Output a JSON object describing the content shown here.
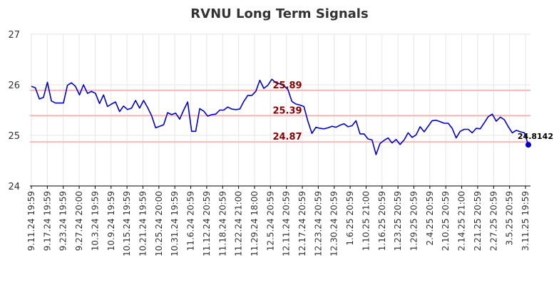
{
  "chart_data": {
    "type": "line",
    "title": "RVNU Long Term Signals",
    "ylim": [
      24,
      27
    ],
    "yticks": [
      24,
      25,
      26,
      27
    ],
    "grid": true,
    "colors": {
      "line": "#0000cc",
      "signal": "#ffb3b3",
      "signal_label": "#8b0000",
      "grid": "#e6e6e6",
      "axis": "#000000",
      "marker": "#0000cc"
    },
    "x_tick_labels": [
      "9.11.24 19:59",
      "9.17.24 19:59",
      "9.23.24 19:59",
      "9.27.24 20:00",
      "10.3.24 19:59",
      "10.9.24 19:59",
      "10.15.24 19:59",
      "10.21.24 19:59",
      "10.25.24 20:00",
      "10.31.24 19:59",
      "11.6.24 20:59",
      "11.12.24 20:59",
      "11.18.24 20:59",
      "11.22.24 21:00",
      "11.29.24 18:00",
      "12.5.24 20:59",
      "12.11.24 20:59",
      "12.17.24 20:59",
      "12.23.24 20:59",
      "12.30.24 20:59",
      "1.6.25 20:59",
      "1.10.25 21:00",
      "1.16.25 20:59",
      "1.23.25 20:59",
      "1.29.25 20:59",
      "2.4.25 20:59",
      "2.10.25 20:59",
      "2.14.25 21:00",
      "2.21.25 20:59",
      "2.27.25 20:59",
      "3.5.25 20:59",
      "3.11.25 19:59"
    ],
    "values": [
      25.97,
      25.94,
      25.72,
      25.75,
      26.05,
      25.68,
      25.64,
      25.64,
      25.64,
      25.99,
      26.04,
      25.97,
      25.8,
      26.0,
      25.83,
      25.87,
      25.83,
      25.63,
      25.8,
      25.57,
      25.62,
      25.66,
      25.47,
      25.58,
      25.51,
      25.54,
      25.69,
      25.54,
      25.69,
      25.55,
      25.39,
      25.15,
      25.18,
      25.21,
      25.45,
      25.41,
      25.44,
      25.32,
      25.5,
      25.66,
      25.08,
      25.08,
      25.53,
      25.48,
      25.38,
      25.41,
      25.42,
      25.5,
      25.5,
      25.56,
      25.52,
      25.51,
      25.52,
      25.67,
      25.79,
      25.79,
      25.87,
      26.09,
      25.93,
      25.99,
      26.11,
      26.04,
      26.02,
      25.98,
      25.91,
      25.67,
      25.62,
      25.6,
      25.57,
      25.28,
      25.04,
      25.16,
      25.14,
      25.13,
      25.15,
      25.18,
      25.16,
      25.2,
      25.23,
      25.17,
      25.19,
      25.29,
      25.03,
      25.03,
      24.93,
      24.91,
      24.62,
      24.84,
      24.9,
      24.95,
      24.85,
      24.92,
      24.82,
      24.91,
      25.05,
      24.96,
      25.01,
      25.17,
      25.07,
      25.18,
      25.29,
      25.3,
      25.27,
      25.24,
      25.24,
      25.14,
      24.95,
      25.08,
      25.12,
      25.12,
      25.05,
      25.14,
      25.13,
      25.25,
      25.37,
      25.42,
      25.28,
      25.36,
      25.31,
      25.17,
      25.05,
      25.1,
      25.07,
      25.05,
      24.8142
    ],
    "signals": [
      {
        "value": 25.89,
        "label": "25.89"
      },
      {
        "value": 25.39,
        "label": "25.39"
      },
      {
        "value": 24.87,
        "label": "24.87"
      }
    ],
    "last_point": {
      "value": 24.8142,
      "label": "24.8142"
    }
  }
}
